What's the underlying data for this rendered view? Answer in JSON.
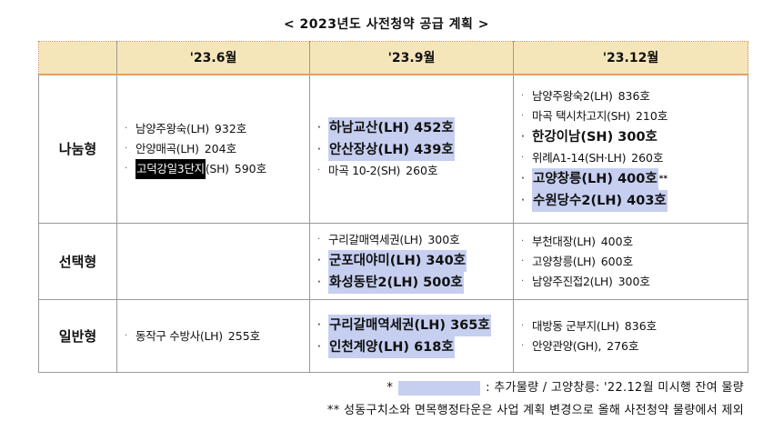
{
  "title": "< 2023년도 사전청약 공급 계획 >",
  "header": {
    "col1": "'23.6월",
    "col2": "'23.9월",
    "col3": "'23.12월"
  },
  "rows": {
    "nanum": {
      "label": "나눔형",
      "jun": [
        {
          "name": "남양주왕숙(LH)",
          "count": "932호"
        },
        {
          "name": "안양매곡(LH)",
          "count": "204호"
        },
        {
          "name_redacted": "고덕강일3단지",
          "name": "(SH)",
          "count": "590호"
        }
      ],
      "sep": [
        {
          "name": "하남교산(LH)",
          "count": "452호"
        },
        {
          "name": "안산장상(LH)",
          "count": "439호"
        },
        {
          "name": "마곡 10-2(SH)",
          "count": "260호"
        }
      ],
      "dec": [
        {
          "name": "남양주왕숙2(LH)",
          "count": "836호"
        },
        {
          "name": "마곡 택시차고지(SH)",
          "count": "210호"
        },
        {
          "name": "한강이남(SH)",
          "count": "300호"
        },
        {
          "name": "위례A1-14(SH·LH)",
          "count": "260호"
        },
        {
          "name": "고양창릉(LH)",
          "count": "400호",
          "mark": "**"
        },
        {
          "name": "수원당수2(LH)",
          "count": "403호"
        }
      ]
    },
    "sontaek": {
      "label": "선택형",
      "sep": [
        {
          "name": "구리갈매역세권(LH)",
          "count": "300호"
        },
        {
          "name": "군포대야미(LH)",
          "count": "340호"
        },
        {
          "name": "화성동탄2(LH)",
          "count": "500호"
        }
      ],
      "dec": [
        {
          "name": "부천대장(LH)",
          "count": "400호"
        },
        {
          "name": "고양창릉(LH)",
          "count": "600호"
        },
        {
          "name": "남양주진접2(LH)",
          "count": "300호"
        }
      ]
    },
    "ilban": {
      "label": "일반형",
      "jun": [
        {
          "name": "동작구 수방사(LH)",
          "count": "255호"
        }
      ],
      "sep": [
        {
          "name": "구리갈매역세권(LH)",
          "count": "365호"
        },
        {
          "name": "인천계양(LH)",
          "count": "618호"
        }
      ],
      "dec": [
        {
          "name": "대방동 군부지(LH)",
          "count": "836호"
        },
        {
          "name": "안양관양(GH),",
          "count": "276호"
        }
      ]
    }
  },
  "bullet": "·",
  "notes": {
    "star": "*",
    "note1_text": ": 추가물량 / 고양창릉: '22.12월 미시행 잔여 물량",
    "note2": "** 성동구치소와 면목행정타운은 사업 계획 변경으로 올해 사전청약 물량에서 제외"
  },
  "colors": {
    "highlight": "#c6cff0",
    "header_bg": "#f5e6ba",
    "header_border": "#e0a060"
  }
}
